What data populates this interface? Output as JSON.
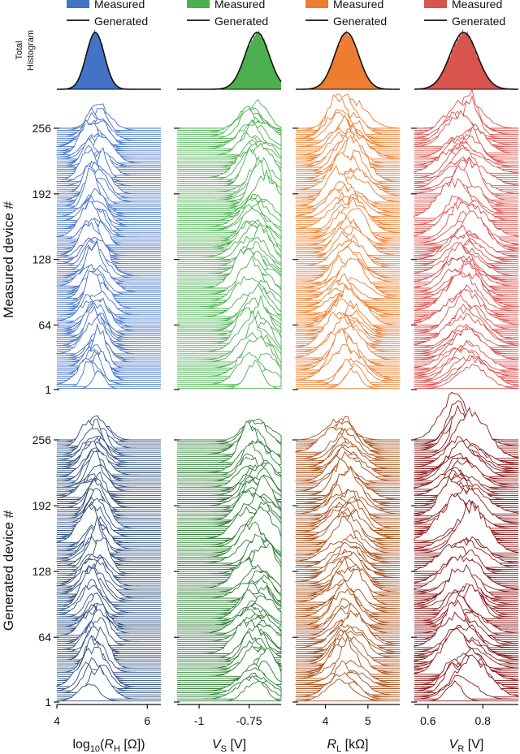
{
  "figure": {
    "legend_measured": "Measured",
    "legend_generated": "Generated",
    "total_hist_label_line1": "Total",
    "total_hist_label_line2": "Histogram",
    "measured_ylabel": "Measured device #",
    "generated_ylabel": "Generated device #",
    "device_ticks": [
      "1",
      "64",
      "128",
      "192",
      "256"
    ]
  },
  "chart_data": [
    {
      "type": "area",
      "panel": "R_H",
      "xlabel": "log10(R_H [Ω])",
      "xlabel_main": "log",
      "xlabel_sub": "10",
      "xlabel_open": "(",
      "xlabel_var": "R",
      "xlabel_var_sub": "H",
      "xlabel_unit": " [Ω])",
      "xlim": [
        4.0,
        6.3
      ],
      "xticks": [
        4,
        6
      ],
      "xtick_labels": [
        "4",
        "6"
      ],
      "color_measured": "#4472c4",
      "color_generated": "#2f4f7f",
      "distribution": {
        "mean": 4.85,
        "std": 0.2
      },
      "devices": 256
    },
    {
      "type": "area",
      "panel": "V_S",
      "xlabel": "V_S [V]",
      "xlabel_var": "V",
      "xlabel_var_sub": "S",
      "xlabel_unit": " [V]",
      "xlim": [
        -1.11,
        -0.59
      ],
      "xticks": [
        -1,
        -0.75
      ],
      "xtick_labels": [
        "-1",
        "-0.75"
      ],
      "color_measured": "#4caf50",
      "color_generated": "#2e7d32",
      "distribution": {
        "mean": -0.71,
        "std": 0.06
      },
      "devices": 256
    },
    {
      "type": "area",
      "panel": "R_L",
      "xlabel": "R_L [kΩ]",
      "xlabel_var": "R",
      "xlabel_var_sub": "L",
      "xlabel_unit": " [kΩ]",
      "xlim": [
        3.3,
        5.75
      ],
      "xticks": [
        4,
        5
      ],
      "xtick_labels": [
        "4",
        "5"
      ],
      "color_measured": "#ed7d31",
      "color_generated": "#a8501a",
      "distribution": {
        "mean": 4.5,
        "std": 0.28
      },
      "devices": 256
    },
    {
      "type": "area",
      "panel": "V_R",
      "xlabel": "V_R [V]",
      "xlabel_var": "V",
      "xlabel_var_sub": "R",
      "xlabel_unit": " [V]",
      "xlim": [
        0.55,
        0.93
      ],
      "xticks": [
        0.6,
        0.8
      ],
      "xtick_labels": [
        "0.6",
        "0.8"
      ],
      "color_measured": "#d9534f",
      "color_generated": "#8b1a1a",
      "distribution": {
        "mean": 0.73,
        "std": 0.05
      },
      "devices": 256
    }
  ]
}
